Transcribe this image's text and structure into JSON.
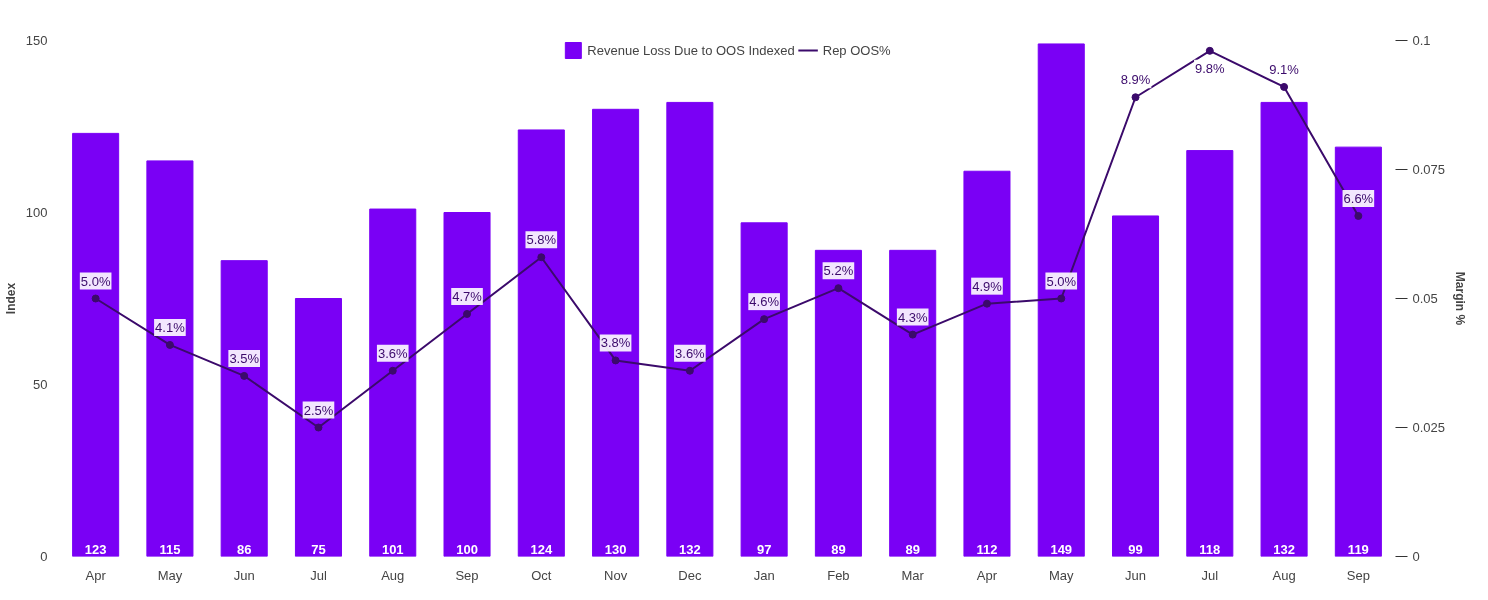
{
  "chart_data": {
    "type": "bar",
    "categories": [
      "Apr",
      "May",
      "Jun",
      "Jul",
      "Aug",
      "Sep",
      "Oct",
      "Nov",
      "Dec",
      "Jan",
      "Feb",
      "Mar",
      "Apr",
      "May",
      "Jun",
      "Jul",
      "Aug",
      "Sep"
    ],
    "series": [
      {
        "name": "Revenue Loss Due to OOS Indexed",
        "color": "#7a00f5",
        "values": [
          123,
          115,
          86,
          75,
          101,
          100,
          124,
          130,
          132,
          97,
          89,
          89,
          112,
          149,
          99,
          118,
          132,
          119
        ]
      },
      {
        "name": "Rep OOS%",
        "type": "line",
        "axis": "y2",
        "color": "#3b0a6b",
        "marker": "circle",
        "values": [
          0.05,
          0.041,
          0.035,
          0.025,
          0.036,
          0.047,
          0.058,
          0.038,
          0.036,
          0.046,
          0.052,
          0.043,
          0.049,
          0.05,
          0.089,
          0.098,
          0.091,
          0.066
        ],
        "value_labels": [
          "5.0%",
          "4.1%",
          "3.5%",
          "2.5%",
          "3.6%",
          "4.7%",
          "5.8%",
          "3.8%",
          "3.6%",
          "4.6%",
          "5.2%",
          "4.3%",
          "4.9%",
          "5.0%",
          "8.9%",
          "9.8%",
          "9.1%",
          "6.6%"
        ]
      }
    ],
    "data_labels": true,
    "ylabel": "Index",
    "y2label": "Margin %",
    "ylim": [
      0,
      150
    ],
    "yticks": [
      0,
      50,
      100,
      150
    ],
    "y2lim": [
      0,
      0.1
    ],
    "y2ticks": [
      0,
      0.025,
      0.05,
      0.075,
      0.1
    ],
    "legend": "top",
    "grid": false
  }
}
